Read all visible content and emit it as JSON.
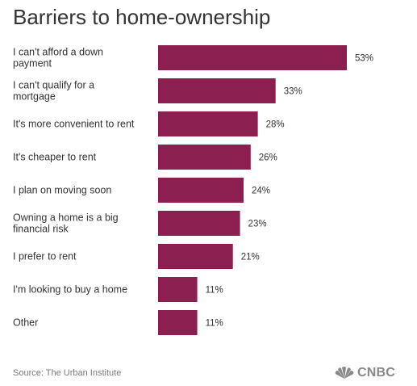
{
  "title": "Barriers to home-ownership",
  "source": "Source: The Urban Institute",
  "brand": {
    "logo_text": "CNBC",
    "logo_icon": "peacock-icon"
  },
  "colors": {
    "bar": "#8b1f4f",
    "text": "#333333",
    "source": "#7a7a7a",
    "logo": "#888888"
  },
  "chart_data": {
    "type": "bar",
    "orientation": "horizontal",
    "title": "Barriers to home-ownership",
    "categories": [
      [
        "I can't afford a down",
        "payment"
      ],
      [
        "I can't qualify for a",
        "mortgage"
      ],
      [
        "It's more convenient to rent"
      ],
      [
        "It's cheaper to rent"
      ],
      [
        "I plan on moving soon"
      ],
      [
        "Owning a home is a big",
        "financial risk"
      ],
      [
        "I prefer to rent"
      ],
      [
        "I'm looking to buy a home"
      ],
      [
        "Other"
      ]
    ],
    "values": [
      53,
      33,
      28,
      26,
      24,
      23,
      21,
      11,
      11
    ],
    "value_labels": [
      "53%",
      "33%",
      "28%",
      "26%",
      "24%",
      "23%",
      "21%",
      "11%",
      "11%"
    ],
    "unit": "%",
    "xlabel": "",
    "ylabel": "",
    "xlim": [
      0,
      53
    ],
    "grid": false,
    "legend": "none"
  }
}
